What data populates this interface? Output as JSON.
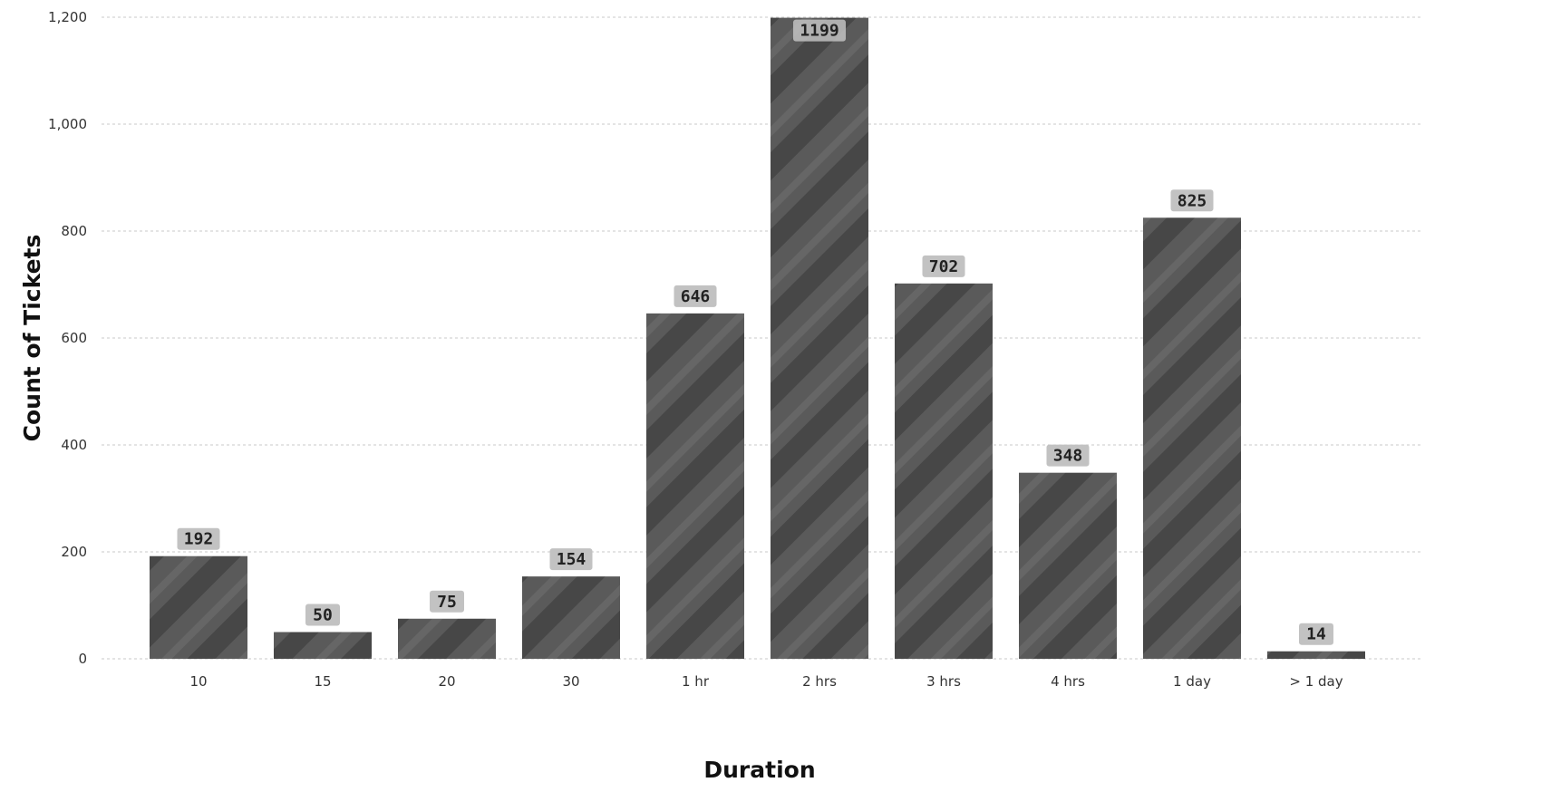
{
  "chart_data": {
    "type": "bar",
    "categories": [
      "10",
      "15",
      "20",
      "30",
      "1 hr",
      "2 hrs",
      "3 hrs",
      "4 hrs",
      "1 day",
      "> 1 day"
    ],
    "values": [
      192,
      50,
      75,
      154,
      646,
      1199,
      702,
      348,
      825,
      14
    ],
    "data_labels": [
      "192",
      "50",
      "75",
      "154",
      "646",
      "1199",
      "702",
      "348",
      "825",
      "14"
    ],
    "xlabel": "Duration",
    "ylabel": "Count of Tickets",
    "ylim": [
      0,
      1200
    ],
    "yticks": [
      0,
      200,
      400,
      600,
      800,
      1000,
      1200
    ],
    "ytick_labels": [
      "0",
      "200",
      "400",
      "600",
      "800",
      "1,000",
      "1,200"
    ],
    "grid": true,
    "legend": "none",
    "colors": {
      "bar": "#555555",
      "label_bg": "#c2c2c2",
      "grid": "#c8c8c8"
    }
  }
}
